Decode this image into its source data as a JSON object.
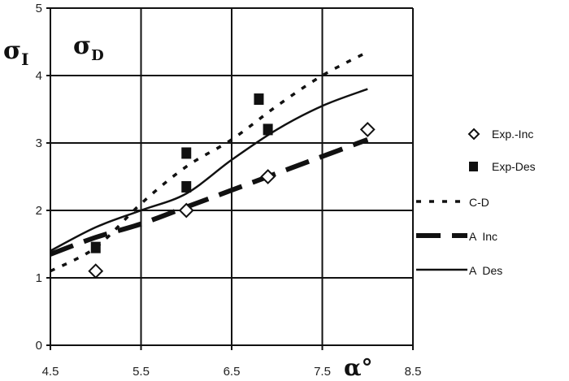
{
  "chart_data": {
    "type": "line",
    "title": "",
    "xlabel": "α°",
    "ylabel": "σI  σD",
    "ylabel_parts": {
      "main": "σ",
      "sub_main": "I",
      "secondary": "σ",
      "sub_secondary": "D"
    },
    "xlim": [
      4.5,
      8.5
    ],
    "ylim": [
      0,
      5
    ],
    "xticks": [
      "4.5",
      "5.5",
      "6.5",
      "7.5",
      "8.5"
    ],
    "yticks": [
      "0",
      "1",
      "2",
      "3",
      "4",
      "5"
    ],
    "grid": true,
    "legend_position": "right",
    "series": [
      {
        "name": "Exp.-Inc",
        "kind": "scatter",
        "marker": "open-diamond",
        "x": [
          5.0,
          6.0,
          6.9,
          8.0
        ],
        "y": [
          1.1,
          2.0,
          2.5,
          3.2
        ]
      },
      {
        "name": "Exp-Des",
        "kind": "scatter",
        "marker": "filled-square",
        "x": [
          5.0,
          6.0,
          6.0,
          6.8,
          6.9
        ],
        "y": [
          1.45,
          2.85,
          2.35,
          3.65,
          3.2
        ]
      },
      {
        "name": "C-D",
        "kind": "line",
        "style": "dotted",
        "x": [
          4.5,
          5.0,
          5.5,
          6.0,
          6.5,
          7.0,
          7.5,
          8.0
        ],
        "y": [
          1.1,
          1.45,
          2.1,
          2.65,
          3.05,
          3.55,
          4.0,
          4.35
        ]
      },
      {
        "name": "A  Inc",
        "kind": "line",
        "style": "long-dash",
        "x": [
          4.5,
          5.0,
          5.5,
          6.0,
          6.5,
          7.0,
          7.5,
          8.0
        ],
        "y": [
          1.35,
          1.6,
          1.8,
          2.05,
          2.3,
          2.55,
          2.8,
          3.05
        ]
      },
      {
        "name": "A  Des",
        "kind": "line",
        "style": "solid",
        "x": [
          4.5,
          5.0,
          5.5,
          6.0,
          6.5,
          7.0,
          7.5,
          8.0
        ],
        "y": [
          1.4,
          1.75,
          2.0,
          2.25,
          2.75,
          3.2,
          3.55,
          3.8
        ]
      }
    ]
  },
  "legend": {
    "items": [
      {
        "label": "Exp.-Inc"
      },
      {
        "label": "Exp-Des"
      },
      {
        "label": "C-D"
      },
      {
        "label": "A  Inc"
      },
      {
        "label": "A  Des"
      }
    ]
  }
}
